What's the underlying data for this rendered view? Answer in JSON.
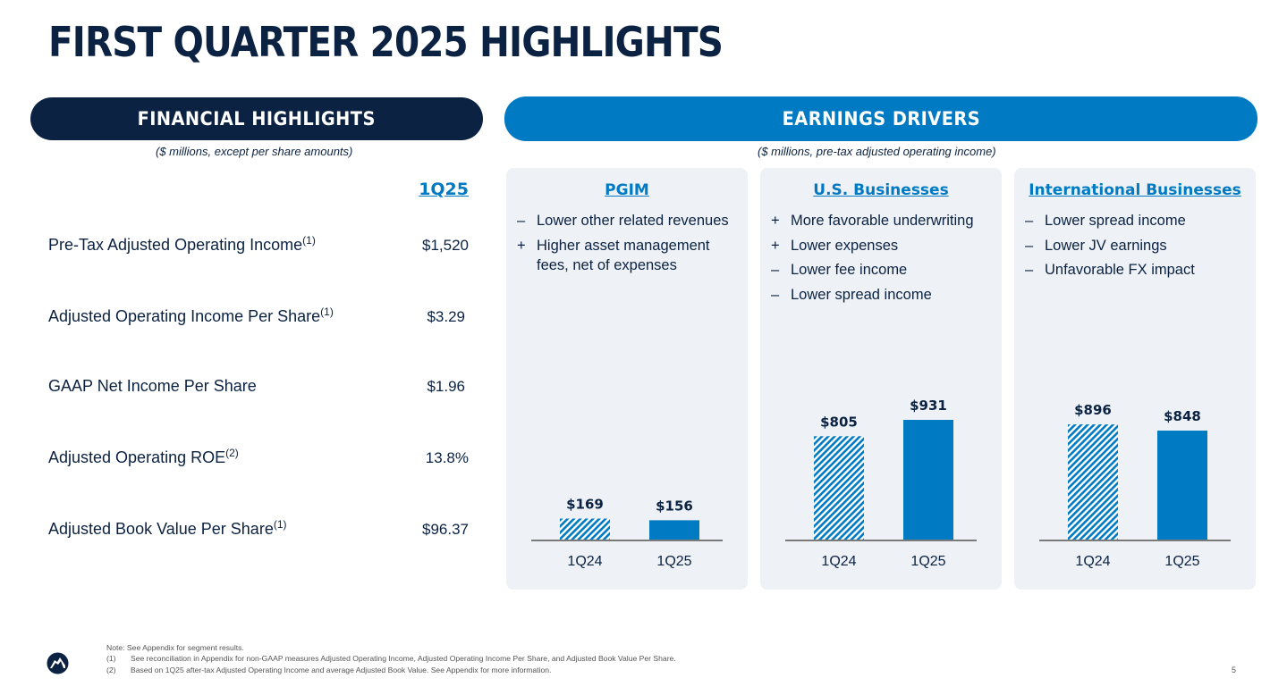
{
  "title": "FIRST QUARTER 2025 HIGHLIGHTS",
  "financial": {
    "header": "FINANCIAL HIGHLIGHTS",
    "note": "($ millions, except per share amounts)",
    "column": "1Q25",
    "rows": [
      {
        "label": "Pre-Tax Adjusted Operating Income",
        "sup": "(1)",
        "value": "$1,520"
      },
      {
        "label": "Adjusted Operating Income Per Share",
        "sup": "(1)",
        "value": "$3.29"
      },
      {
        "label": "GAAP Net Income Per Share",
        "sup": "",
        "value": "$1.96"
      },
      {
        "label": "Adjusted Operating ROE",
        "sup": "(2)",
        "value": "13.8%"
      },
      {
        "label": "Adjusted Book Value Per Share",
        "sup": "(1)",
        "value": "$96.37"
      }
    ]
  },
  "earnings": {
    "header": "EARNINGS DRIVERS",
    "note": "($ millions, pre-tax adjusted operating income)"
  },
  "chart_data": [
    {
      "type": "bar",
      "title": "PGIM",
      "categories": [
        "1Q24",
        "1Q25"
      ],
      "values": [
        169,
        156
      ],
      "data_labels": [
        "$169",
        "$156"
      ],
      "ylim": [
        0,
        1000
      ],
      "drivers": [
        {
          "sign": "–",
          "text": "Lower other related revenues"
        },
        {
          "sign": "+",
          "text": "Higher asset management fees, net of expenses"
        }
      ]
    },
    {
      "type": "bar",
      "title": "U.S. Businesses",
      "categories": [
        "1Q24",
        "1Q25"
      ],
      "values": [
        805,
        931
      ],
      "data_labels": [
        "$805",
        "$931"
      ],
      "ylim": [
        0,
        1000
      ],
      "drivers": [
        {
          "sign": "+",
          "text": "More favorable underwriting"
        },
        {
          "sign": "+",
          "text": "Lower expenses"
        },
        {
          "sign": "–",
          "text": "Lower fee income"
        },
        {
          "sign": "–",
          "text": "Lower spread income"
        }
      ]
    },
    {
      "type": "bar",
      "title": "International Businesses",
      "categories": [
        "1Q24",
        "1Q25"
      ],
      "values": [
        896,
        848
      ],
      "data_labels": [
        "$896",
        "$848"
      ],
      "ylim": [
        0,
        1000
      ],
      "drivers": [
        {
          "sign": "–",
          "text": "Lower spread income"
        },
        {
          "sign": "–",
          "text": "Lower JV earnings"
        },
        {
          "sign": "–",
          "text": "Unfavorable FX impact"
        }
      ]
    }
  ],
  "colors": {
    "navy": "#0b2242",
    "blue": "#007ac2",
    "panel": "#eef2f6",
    "axis": "#7a7a7a"
  },
  "footnotes": {
    "note": "Note: See Appendix for segment results.",
    "items": [
      {
        "num": "(1)",
        "text": "See reconciliation in Appendix for non-GAAP measures Adjusted Operating Income, Adjusted Operating Income Per Share, and Adjusted Book Value Per Share."
      },
      {
        "num": "(2)",
        "text": "Based on 1Q25 after-tax Adjusted Operating Income and average Adjusted Book Value. See Appendix for more information."
      }
    ]
  },
  "logo_icon": "rock-logo-icon",
  "page_number": "5"
}
